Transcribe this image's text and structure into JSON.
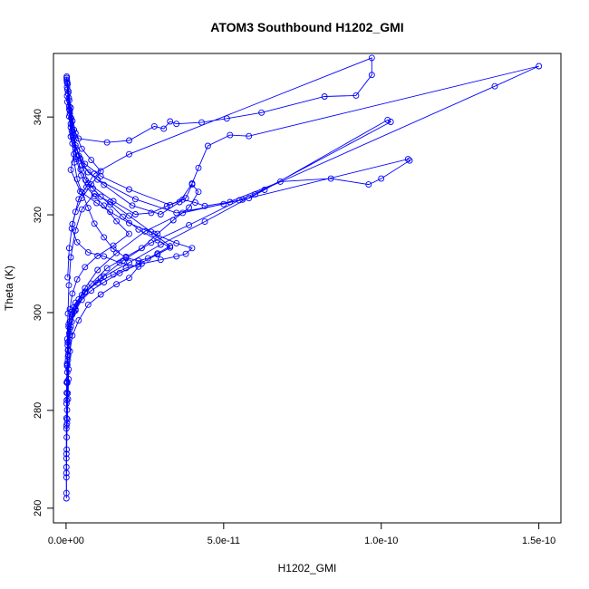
{
  "chart_data": {
    "type": "scatter",
    "title": "ATOM3 Southbound H1202_GMI",
    "xlabel": "H1202_GMI",
    "ylabel": "Theta (K)",
    "xlim": [
      -4e-12,
      1.57e-10
    ],
    "ylim": [
      257.0,
      353.0
    ],
    "xticks": [
      0,
      5e-11,
      1e-10,
      1.5e-10
    ],
    "xtick_labels": [
      "0.0e+00",
      "5.0e-11",
      "1.0e-10",
      "1.5e-10"
    ],
    "yticks": [
      260,
      280,
      300,
      320,
      340
    ],
    "ytick_labels": [
      "260",
      "280",
      "300",
      "320",
      "340"
    ],
    "grid": false,
    "line_color": "#0000ff",
    "marker": "open-circle",
    "series": [
      {
        "points": [
          [
            2e-13,
            348.3
          ],
          [
            8e-13,
            345.2
          ],
          [
            1e-12,
            340.1
          ],
          [
            1.5e-12,
            336.0
          ],
          [
            2.5e-12,
            332.4
          ],
          [
            1.5e-12,
            329.2
          ],
          [
            4.5e-12,
            324.8
          ],
          [
            9.7e-12,
            322.4
          ],
          [
            1.4e-11,
            320.6
          ],
          [
            2e-11,
            318.3
          ],
          [
            2.8e-11,
            316.1
          ],
          [
            3.5e-11,
            314.2
          ],
          [
            4e-11,
            313.2
          ],
          [
            3.8e-11,
            312.0
          ],
          [
            3.5e-11,
            311.5
          ],
          [
            3e-11,
            310.8
          ],
          [
            2.4e-11,
            310.0
          ],
          [
            1.9e-11,
            309.1
          ],
          [
            1.5e-11,
            307.8
          ],
          [
            1e-11,
            306.1
          ],
          [
            6e-12,
            304.3
          ],
          [
            3e-12,
            302.0
          ],
          [
            1.5e-12,
            300.1
          ],
          [
            8e-13,
            297.6
          ],
          [
            5e-13,
            293.9
          ],
          [
            6e-13,
            290.3
          ],
          [
            8e-13,
            286.4
          ],
          [
            6e-13,
            282.3
          ],
          [
            4e-13,
            278.2
          ],
          [
            2e-13,
            274.5
          ],
          [
            1e-13,
            270.2
          ],
          [
            1e-13,
            266.3
          ],
          [
            1e-13,
            262.0
          ]
        ]
      },
      {
        "points": [
          [
            2e-13,
            347.6
          ],
          [
            1e-12,
            342.2
          ],
          [
            2e-12,
            336.4
          ],
          [
            3.5e-12,
            333.2
          ],
          [
            5e-12,
            330.1
          ],
          [
            1e-11,
            327.2
          ],
          [
            2.2e-11,
            323.2
          ],
          [
            3.5e-11,
            320.4
          ],
          [
            5e-11,
            322.2
          ],
          [
            6.8e-11,
            326.8
          ],
          [
            8.4e-11,
            327.4
          ],
          [
            9.6e-11,
            326.2
          ],
          [
            1e-10,
            327.4
          ],
          [
            1.09e-10,
            331.1
          ],
          [
            1.085e-10,
            331.4
          ],
          [
            5.6e-11,
            323.1
          ],
          [
            3.7e-11,
            320.4
          ],
          [
            2.5e-11,
            316.6
          ],
          [
            1.6e-11,
            312.2
          ],
          [
            1e-11,
            308.7
          ],
          [
            6e-12,
            305.0
          ],
          [
            2.5e-12,
            301.1
          ],
          [
            1.2e-12,
            298.2
          ],
          [
            8e-13,
            294.1
          ]
        ]
      },
      {
        "points": [
          [
            3e-13,
            346.1
          ],
          [
            1.2e-12,
            341.3
          ],
          [
            2.5e-12,
            337.4
          ],
          [
            4e-12,
            335.6
          ],
          [
            1.3e-11,
            334.8
          ],
          [
            2e-11,
            335.2
          ],
          [
            2.8e-11,
            338.1
          ],
          [
            3.1e-11,
            337.6
          ],
          [
            3.3e-11,
            339.1
          ],
          [
            3.5e-11,
            338.6
          ],
          [
            4.3e-11,
            338.9
          ],
          [
            5.1e-11,
            339.7
          ],
          [
            6.2e-11,
            340.9
          ],
          [
            8.2e-11,
            344.2
          ],
          [
            9.2e-11,
            344.4
          ],
          [
            9.7e-11,
            348.6
          ],
          [
            9.7e-11,
            352.1
          ],
          [
            2e-11,
            332.4
          ],
          [
            9e-12,
            328.4
          ],
          [
            4e-12,
            323.2
          ],
          [
            2e-12,
            318.1
          ],
          [
            1e-12,
            313.2
          ],
          [
            5e-13,
            307.2
          ]
        ]
      },
      {
        "points": [
          [
            3e-13,
            344.3
          ],
          [
            1.5e-12,
            338.6
          ],
          [
            3e-12,
            333.7
          ],
          [
            6e-12,
            330.4
          ],
          [
            1.1e-11,
            327.9
          ],
          [
            2e-11,
            325.2
          ],
          [
            3.3e-11,
            322.0
          ],
          [
            3.7e-11,
            323.1
          ],
          [
            4.1e-11,
            322.5
          ],
          [
            4.4e-11,
            321.8
          ],
          [
            5.2e-11,
            322.6
          ],
          [
            5.8e-11,
            323.4
          ],
          [
            6.3e-11,
            325.1
          ],
          [
            1.02e-10,
            339.4
          ],
          [
            1.03e-10,
            339.0
          ],
          [
            6e-11,
            324.2
          ],
          [
            4.4e-11,
            318.6
          ],
          [
            3e-11,
            313.9
          ],
          [
            2e-11,
            310.2
          ],
          [
            1.2e-11,
            307.4
          ],
          [
            6e-12,
            304.1
          ],
          [
            3e-12,
            300.7
          ],
          [
            1.5e-12,
            297.1
          ],
          [
            7e-13,
            291.4
          ]
        ]
      },
      {
        "points": [
          [
            4e-13,
            343.1
          ],
          [
            1.8e-12,
            337.1
          ],
          [
            4e-12,
            332.1
          ],
          [
            7e-12,
            328.7
          ],
          [
            1.2e-11,
            326.1
          ],
          [
            2.1e-11,
            321.9
          ],
          [
            3e-11,
            320.1
          ],
          [
            3.6e-11,
            322.6
          ],
          [
            4e-11,
            326.4
          ],
          [
            4.2e-11,
            329.6
          ],
          [
            4.5e-11,
            334.1
          ],
          [
            5.2e-11,
            336.3
          ],
          [
            5.8e-11,
            336.1
          ],
          [
            1.5e-10,
            350.4
          ],
          [
            1.36e-10,
            346.3
          ],
          [
            5.5e-11,
            323.0
          ],
          [
            3.9e-11,
            317.9
          ],
          [
            2.7e-11,
            314.3
          ],
          [
            1.8e-11,
            310.6
          ],
          [
            1.1e-11,
            307.1
          ],
          [
            5e-12,
            303.6
          ],
          [
            2.5e-12,
            300.2
          ],
          [
            1.2e-12,
            296.7
          ],
          [
            6e-13,
            292.3
          ],
          [
            4e-13,
            287.8
          ]
        ]
      },
      {
        "points": [
          [
            3e-13,
            347.0
          ],
          [
            1e-12,
            343.4
          ],
          [
            2e-12,
            339.2
          ],
          [
            3e-12,
            334.2
          ],
          [
            4.5e-12,
            331.5
          ],
          [
            7e-12,
            326.4
          ],
          [
            1.5e-11,
            322.8
          ],
          [
            2.2e-11,
            320.1
          ],
          [
            2.7e-11,
            320.4
          ],
          [
            3.2e-11,
            321.8
          ],
          [
            3.8e-11,
            323.4
          ],
          [
            4e-11,
            326.2
          ],
          [
            4.2e-11,
            324.7
          ],
          [
            3.9e-11,
            321.5
          ],
          [
            3.4e-11,
            318.9
          ],
          [
            2.9e-11,
            316.1
          ],
          [
            2.4e-11,
            313.2
          ],
          [
            1.9e-11,
            311.4
          ],
          [
            1.3e-11,
            309.1
          ],
          [
            8e-12,
            305.9
          ],
          [
            4e-12,
            302.7
          ],
          [
            2e-12,
            299.6
          ],
          [
            1e-12,
            295.8
          ],
          [
            6e-13,
            291.0
          ],
          [
            4e-13,
            285.6
          ],
          [
            3e-13,
            280.1
          ]
        ]
      },
      {
        "points": [
          [
            5e-13,
            346.8
          ],
          [
            1.5e-12,
            341.9
          ],
          [
            3e-12,
            336.7
          ],
          [
            5e-12,
            333.5
          ],
          [
            8e-12,
            331.2
          ],
          [
            1.1e-11,
            328.9
          ],
          [
            8e-12,
            326.2
          ],
          [
            5e-12,
            323.4
          ],
          [
            3e-12,
            320.6
          ],
          [
            1.8e-12,
            317.2
          ],
          [
            3.5e-12,
            314.4
          ],
          [
            7e-12,
            312.3
          ],
          [
            1.2e-11,
            311.5
          ],
          [
            1.7e-11,
            310.2
          ],
          [
            2.3e-11,
            309.4
          ],
          [
            2e-11,
            307.1
          ],
          [
            1.6e-11,
            305.8
          ],
          [
            1.1e-11,
            303.7
          ],
          [
            7e-12,
            301.6
          ],
          [
            4e-12,
            298.4
          ],
          [
            2e-12,
            295.3
          ],
          [
            1.2e-12,
            292.1
          ],
          [
            8e-13,
            288.4
          ],
          [
            5e-13,
            283.5
          ],
          [
            3e-13,
            277.4
          ],
          [
            2e-13,
            272.0
          ],
          [
            1e-13,
            267.2
          ]
        ]
      },
      {
        "points": [
          [
            2e-13,
            348.0
          ],
          [
            6e-13,
            344.8
          ],
          [
            1e-12,
            341.6
          ],
          [
            1.5e-12,
            337.9
          ],
          [
            2e-12,
            334.6
          ],
          [
            2.6e-12,
            330.7
          ],
          [
            3.5e-12,
            327.3
          ],
          [
            5e-12,
            324.6
          ],
          [
            7e-12,
            321.4
          ],
          [
            9e-12,
            318.2
          ],
          [
            1.2e-11,
            315.4
          ],
          [
            1.5e-11,
            313.0
          ],
          [
            1.9e-11,
            311.2
          ],
          [
            2.3e-11,
            310.6
          ],
          [
            2.6e-11,
            311.1
          ],
          [
            2.9e-11,
            312.1
          ],
          [
            3.3e-11,
            313.6
          ],
          [
            2.7e-11,
            316.5
          ],
          [
            2e-11,
            319.8
          ],
          [
            1.4e-11,
            322.6
          ],
          [
            9e-12,
            324.3
          ],
          [
            5e-12,
            321.1
          ],
          [
            3e-12,
            316.8
          ],
          [
            1.5e-12,
            311.3
          ],
          [
            9e-13,
            305.6
          ],
          [
            6e-13,
            299.8
          ],
          [
            4e-13,
            294.6
          ],
          [
            3e-13,
            289.1
          ],
          [
            2e-13,
            283.6
          ],
          [
            1e-13,
            278.4
          ]
        ]
      },
      {
        "points": [
          [
            4e-13,
            345.6
          ],
          [
            1.2e-12,
            340.7
          ],
          [
            2.2e-12,
            335.8
          ],
          [
            3.2e-12,
            331.4
          ],
          [
            4.8e-12,
            328.1
          ],
          [
            6.5e-12,
            325.7
          ],
          [
            9e-12,
            323.8
          ],
          [
            1.2e-11,
            321.9
          ],
          [
            1.6e-11,
            318.7
          ],
          [
            2e-11,
            316.1
          ],
          [
            1.5e-11,
            313.7
          ],
          [
            1e-11,
            311.6
          ],
          [
            6e-12,
            309.3
          ],
          [
            3.5e-12,
            306.8
          ],
          [
            2e-12,
            303.9
          ],
          [
            1.2e-12,
            300.7
          ],
          [
            8e-13,
            297.1
          ],
          [
            5e-13,
            293.3
          ],
          [
            3e-13,
            289.6
          ],
          [
            2e-13,
            285.7
          ],
          [
            1.5e-13,
            281.4
          ],
          [
            1e-13,
            276.3
          ],
          [
            1e-13,
            271.1
          ],
          [
            1e-13,
            268.4
          ]
        ]
      },
      {
        "points": [
          [
            3e-13,
            347.3
          ],
          [
            9e-13,
            343.9
          ],
          [
            1.6e-12,
            339.8
          ],
          [
            2.4e-12,
            335.3
          ],
          [
            3.4e-12,
            331.9
          ],
          [
            4.6e-12,
            329.3
          ],
          [
            6.2e-12,
            327.1
          ],
          [
            8.5e-12,
            325.4
          ],
          [
            1.1e-11,
            323.7
          ],
          [
            1.4e-11,
            322.1
          ],
          [
            1.8e-11,
            319.6
          ],
          [
            2.3e-11,
            317.0
          ],
          [
            2.9e-11,
            314.8
          ],
          [
            3.3e-11,
            313.3
          ],
          [
            2.9e-11,
            311.9
          ],
          [
            2.3e-11,
            309.9
          ],
          [
            1.7e-11,
            308.1
          ],
          [
            1.2e-11,
            306.2
          ],
          [
            8e-12,
            304.5
          ],
          [
            5e-12,
            302.6
          ],
          [
            3e-12,
            300.4
          ],
          [
            1.8e-12,
            298.1
          ],
          [
            1.1e-12,
            295.4
          ],
          [
            7e-13,
            292.4
          ],
          [
            4e-13,
            289.3
          ],
          [
            3e-13,
            285.9
          ],
          [
            2e-13,
            282.1
          ],
          [
            1e-13,
            276.9
          ],
          [
            1e-13,
            263.1
          ]
        ]
      }
    ]
  }
}
